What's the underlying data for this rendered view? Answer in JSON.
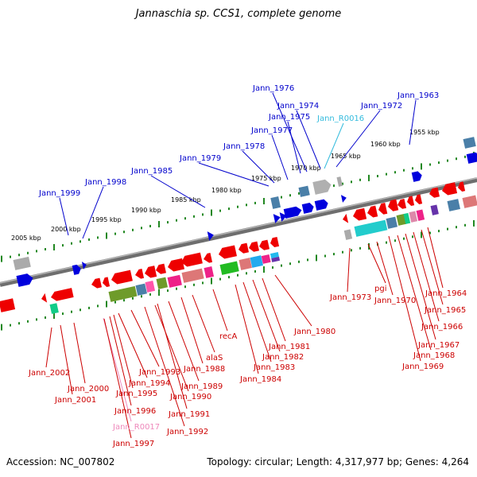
{
  "title": "Jannaschia sp. CCS1, complete genome",
  "footer": {
    "accession": "Accession: NC_007802",
    "topology": "Topology: circular; Length: 4,317,977 bp; Genes: 4,264"
  },
  "colors": {
    "forward_label": "#0000cc",
    "reverse_label": "#cc0000",
    "rna_forward_label": "#33bbdd",
    "rna_reverse_label": "#ee88bb",
    "backbone": "#808080",
    "tick": "#228822"
  },
  "kbp_scale": [
    "2005 kbp",
    "2000 kbp",
    "1995 kbp",
    "1990 kbp",
    "1985 kbp",
    "1980 kbp",
    "1975 kbp",
    "1970 kbp",
    "1965 kbp",
    "1960 kbp",
    "1955 kbp"
  ],
  "forward_labels": [
    "Jann_1999",
    "Jann_1998",
    "Jann_1985",
    "Jann_1979",
    "Jann_1978",
    "Jann_1977",
    "Jann_1976",
    "Jann_1975",
    "Jann_1974",
    "Jann_R0016",
    "Jann_1972",
    "Jann_1963"
  ],
  "reverse_labels": [
    "Jann_2002",
    "Jann_2000",
    "Jann_2001",
    "Jann_1995",
    "Jann_1994",
    "Jann_1996",
    "Jann_R0017",
    "Jann_1997",
    "Jann_1993",
    "Jann_1990",
    "Jann_1991",
    "Jann_1992",
    "Jann_1989",
    "Jann_1988",
    "alaS",
    "recA",
    "Jann_1984",
    "Jann_1983",
    "Jann_1982",
    "Jann_1981",
    "Jann_1980",
    "Jann_1973",
    "pgi",
    "Jann_1970",
    "Jann_1969",
    "Jann_1968",
    "Jann_1967",
    "Jann_1966",
    "Jann_1965",
    "Jann_1964"
  ]
}
